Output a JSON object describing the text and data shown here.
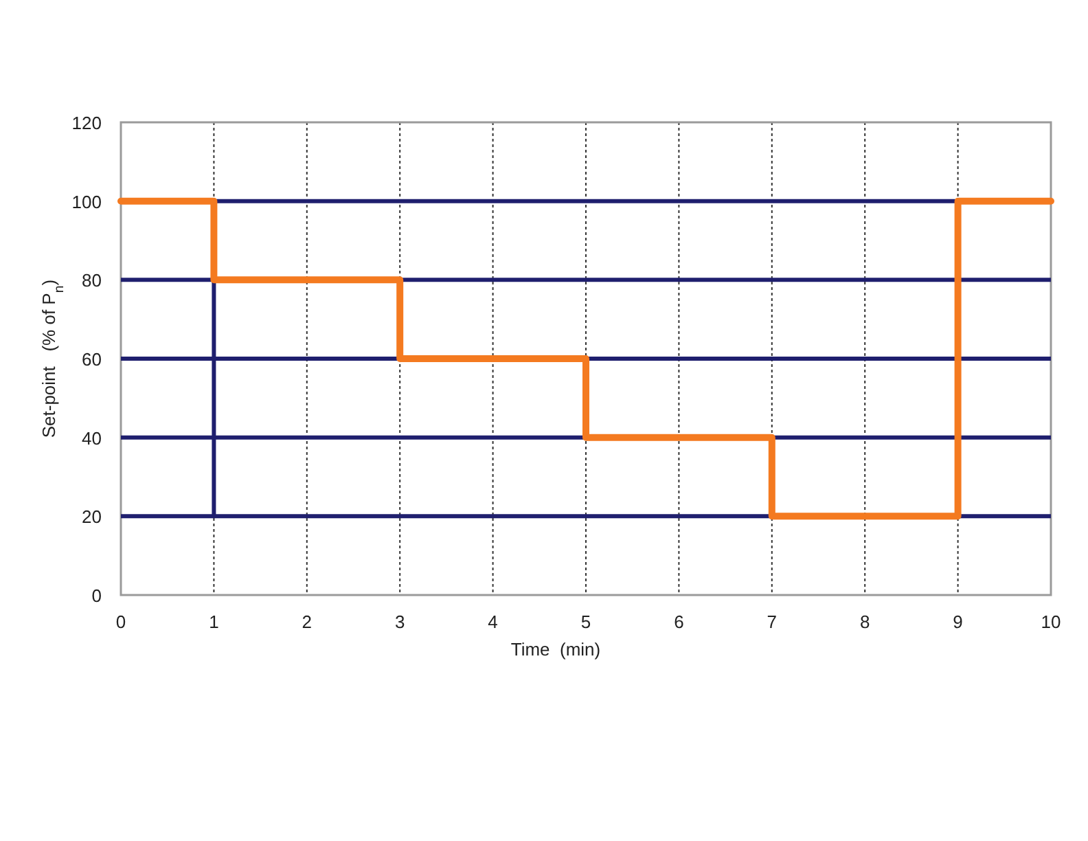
{
  "chart_data": {
    "type": "step",
    "xlabel": "Time  (min)",
    "ylabel": "Set-point   (% of P$_{n}$)",
    "xlim": [
      0,
      10
    ],
    "xticks": [
      0,
      1,
      2,
      3,
      4,
      5,
      6,
      7,
      8,
      9,
      10
    ],
    "ylim": [
      0,
      120
    ],
    "yticks": [
      0,
      20,
      40,
      60,
      80,
      100,
      120
    ],
    "grid": "x",
    "marker": "none",
    "ref_lines": [
      {
        "axis": "y",
        "value": 20,
        "color": "#1f1f6e"
      },
      {
        "axis": "y",
        "value": 40,
        "color": "#1f1f6e"
      },
      {
        "axis": "y",
        "value": 60,
        "color": "#1f1f6e"
      },
      {
        "axis": "y",
        "value": 80,
        "color": "#1f1f6e"
      },
      {
        "axis": "y",
        "value": 100,
        "color": "#1f1f6e"
      }
    ],
    "series": [
      {
        "type": "line",
        "color": "#1f1f6e",
        "x": [
          1,
          1
        ],
        "values": [
          20,
          80
        ]
      },
      {
        "color": "#f47a20",
        "x": [
          0,
          1,
          3,
          5,
          7,
          9,
          10
        ],
        "values": [
          100,
          80,
          60,
          40,
          20,
          100,
          100
        ]
      }
    ]
  }
}
